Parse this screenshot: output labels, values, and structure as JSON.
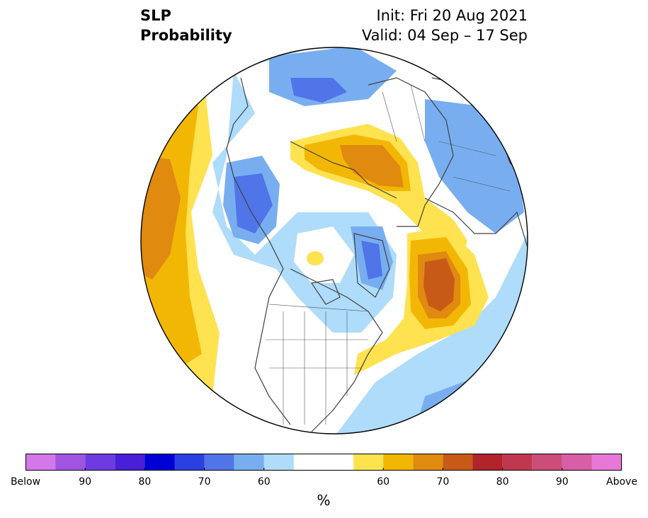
{
  "title": {
    "line1": "SLP",
    "line2": "Probability"
  },
  "meta": {
    "init": "Init: Fri 20 Aug 2021",
    "valid": "Valid: 04 Sep – 17 Sep"
  },
  "colorbar": {
    "unit": "%",
    "colors": [
      "#d477e8",
      "#9f55e0",
      "#6e3be0",
      "#4a1fd8",
      "#0000d6",
      "#2a40e0",
      "#4f75e8",
      "#78aef0",
      "#aedcfa",
      "#ffffff",
      "#ffe250",
      "#f2b705",
      "#e08a10",
      "#c85a18",
      "#b0242a",
      "#c03850",
      "#cc4c7a",
      "#d85ea8",
      "#e878d8"
    ],
    "tick_labels": [
      "Below",
      "90",
      "80",
      "70",
      "60",
      "60",
      "70",
      "80",
      "90",
      "Above"
    ]
  },
  "map": {
    "projection": "north-polar stereographic",
    "field": "sea level pressure tercile probability",
    "features": [
      "coastlines",
      "country borders",
      "US state borders",
      "Canadian provinces"
    ]
  }
}
